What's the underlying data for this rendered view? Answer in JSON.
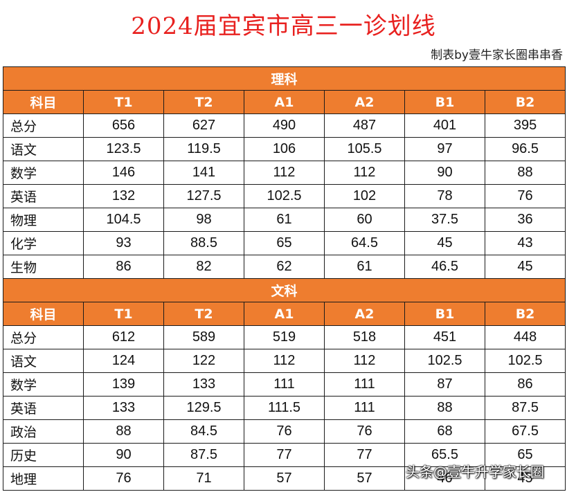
{
  "title": "2024届宜宾市高三一诊划线",
  "credit": "制表by壹牛家长圈串串香",
  "watermark": "头条@壹牛升学家长圈",
  "columns": [
    "科目",
    "T1",
    "T2",
    "A1",
    "A2",
    "B1",
    "B2"
  ],
  "sections": [
    {
      "name": "理科",
      "rows": [
        {
          "subject": "总分",
          "values": [
            "656",
            "627",
            "490",
            "487",
            "401",
            "395"
          ]
        },
        {
          "subject": "语文",
          "values": [
            "123.5",
            "119.5",
            "106",
            "105.5",
            "97",
            "96.5"
          ]
        },
        {
          "subject": "数学",
          "values": [
            "146",
            "141",
            "112",
            "112",
            "90",
            "88"
          ]
        },
        {
          "subject": "英语",
          "values": [
            "132",
            "127.5",
            "102.5",
            "102",
            "78",
            "76"
          ]
        },
        {
          "subject": "物理",
          "values": [
            "104.5",
            "98",
            "61",
            "60",
            "37.5",
            "36"
          ]
        },
        {
          "subject": "化学",
          "values": [
            "93",
            "88.5",
            "65",
            "64.5",
            "45",
            "43"
          ]
        },
        {
          "subject": "生物",
          "values": [
            "86",
            "82",
            "62",
            "61",
            "46.5",
            "45"
          ]
        }
      ]
    },
    {
      "name": "文科",
      "rows": [
        {
          "subject": "总分",
          "values": [
            "612",
            "589",
            "519",
            "518",
            "451",
            "448"
          ]
        },
        {
          "subject": "语文",
          "values": [
            "124",
            "122",
            "112",
            "112",
            "102.5",
            "102.5"
          ]
        },
        {
          "subject": "数学",
          "values": [
            "139",
            "133",
            "111",
            "111",
            "87",
            "86"
          ]
        },
        {
          "subject": "英语",
          "values": [
            "133",
            "129.5",
            "111.5",
            "111",
            "88",
            "87.5"
          ]
        },
        {
          "subject": "政治",
          "values": [
            "88",
            "84.5",
            "76",
            "76",
            "68",
            "67.5"
          ]
        },
        {
          "subject": "历史",
          "values": [
            "90",
            "87.5",
            "77",
            "77",
            "65.5",
            "65"
          ]
        },
        {
          "subject": "地理",
          "values": [
            "76",
            "71",
            "57",
            "57",
            "46",
            "45"
          ]
        }
      ]
    }
  ],
  "colors": {
    "title": "#e8211f",
    "header_bg": "#ee7d2f",
    "header_text": "#ffffff"
  }
}
